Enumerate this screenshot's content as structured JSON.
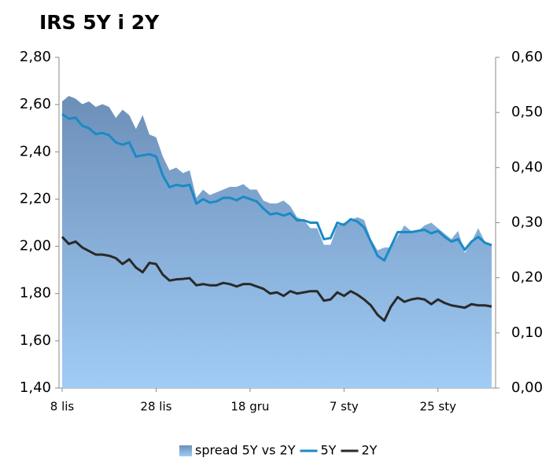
{
  "chart_data": {
    "type": "line",
    "title": "IRS 5Y i 2Y",
    "categories": [
      "8 lis",
      null,
      null,
      null,
      null,
      null,
      null,
      null,
      null,
      null,
      null,
      null,
      null,
      null,
      "28 lis",
      null,
      null,
      null,
      null,
      null,
      null,
      null,
      null,
      null,
      null,
      null,
      null,
      null,
      "18 gru",
      null,
      null,
      null,
      null,
      null,
      null,
      null,
      null,
      null,
      null,
      null,
      null,
      null,
      "7 sty",
      null,
      null,
      null,
      null,
      null,
      null,
      null,
      null,
      null,
      null,
      null,
      null,
      null,
      "25 sty",
      null,
      null,
      null,
      null,
      null,
      null,
      null,
      null
    ],
    "series": [
      {
        "name": "spread 5Y vs 2Y",
        "type": "area",
        "axis": "y2",
        "color": "#7a9cc6",
        "values": [
          0.52,
          0.53,
          0.525,
          0.515,
          0.52,
          0.51,
          0.515,
          0.51,
          0.49,
          0.505,
          0.495,
          0.47,
          0.495,
          0.46,
          0.455,
          0.42,
          0.395,
          0.4,
          0.39,
          0.395,
          0.345,
          0.36,
          0.35,
          0.355,
          0.36,
          0.365,
          0.365,
          0.37,
          0.36,
          0.36,
          0.34,
          0.335,
          0.335,
          0.34,
          0.33,
          0.31,
          0.305,
          0.29,
          0.29,
          0.26,
          0.26,
          0.295,
          0.3,
          0.305,
          0.31,
          0.305,
          0.27,
          0.25,
          0.255,
          0.255,
          0.275,
          0.295,
          0.285,
          0.285,
          0.295,
          0.3,
          0.29,
          0.28,
          0.27,
          0.285,
          0.245,
          0.265,
          0.29,
          0.265,
          0.26
        ]
      },
      {
        "name": "5Y",
        "type": "line",
        "color": "#1a8ac6",
        "values": [
          2.56,
          2.54,
          2.545,
          2.51,
          2.5,
          2.475,
          2.48,
          2.47,
          2.44,
          2.43,
          2.44,
          2.38,
          2.385,
          2.39,
          2.38,
          2.3,
          2.25,
          2.26,
          2.255,
          2.26,
          2.18,
          2.2,
          2.185,
          2.19,
          2.205,
          2.205,
          2.195,
          2.21,
          2.2,
          2.19,
          2.16,
          2.135,
          2.14,
          2.13,
          2.14,
          2.11,
          2.11,
          2.1,
          2.1,
          2.03,
          2.035,
          2.1,
          2.09,
          2.115,
          2.105,
          2.08,
          2.02,
          1.96,
          1.94,
          2.0,
          2.06,
          2.06,
          2.06,
          2.065,
          2.07,
          2.055,
          2.065,
          2.04,
          2.02,
          2.03,
          1.985,
          2.02,
          2.04,
          2.015,
          2.005
        ]
      },
      {
        "name": "2Y",
        "type": "line",
        "color": "#2a2a2a",
        "values": [
          2.04,
          2.01,
          2.02,
          1.995,
          1.98,
          1.965,
          1.965,
          1.96,
          1.95,
          1.925,
          1.945,
          1.91,
          1.89,
          1.93,
          1.925,
          1.88,
          1.855,
          1.86,
          1.862,
          1.865,
          1.835,
          1.84,
          1.835,
          1.835,
          1.845,
          1.84,
          1.83,
          1.84,
          1.84,
          1.83,
          1.82,
          1.8,
          1.805,
          1.79,
          1.81,
          1.8,
          1.805,
          1.81,
          1.81,
          1.77,
          1.775,
          1.805,
          1.79,
          1.81,
          1.795,
          1.775,
          1.75,
          1.71,
          1.685,
          1.745,
          1.785,
          1.765,
          1.775,
          1.78,
          1.775,
          1.755,
          1.775,
          1.76,
          1.75,
          1.745,
          1.74,
          1.755,
          1.75,
          1.75,
          1.745
        ]
      }
    ],
    "ylim": [
      1.4,
      2.8
    ],
    "yticks": [
      {
        "value": 1.4,
        "label": "1,40"
      },
      {
        "value": 1.6,
        "label": "1,60"
      },
      {
        "value": 1.8,
        "label": "1,80"
      },
      {
        "value": 2.0,
        "label": "2,00"
      },
      {
        "value": 2.2,
        "label": "2,20"
      },
      {
        "value": 2.4,
        "label": "2,40"
      },
      {
        "value": 2.6,
        "label": "2,60"
      },
      {
        "value": 2.8,
        "label": "2,80"
      }
    ],
    "y2lim": [
      0,
      0.6
    ],
    "y2ticks": [
      {
        "value": 0,
        "label": "0,00"
      },
      {
        "value": 0.1,
        "label": "0,10"
      },
      {
        "value": 0.2,
        "label": "0,20"
      },
      {
        "value": 0.3,
        "label": "0,30"
      },
      {
        "value": 0.4,
        "label": "0,40"
      },
      {
        "value": 0.5,
        "label": "0,50"
      },
      {
        "value": 0.6,
        "label": "0,60"
      }
    ],
    "grid": false,
    "legend": "bottom"
  }
}
